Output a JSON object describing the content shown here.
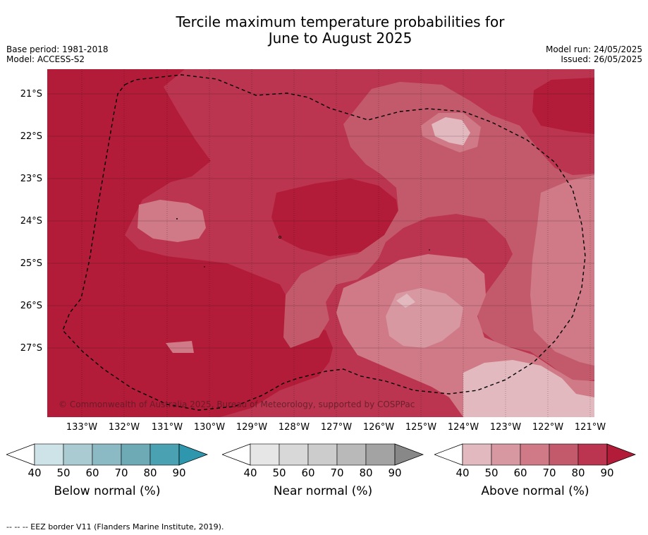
{
  "title_line1": "Tercile maximum temperature probabilities for",
  "title_line2": "June to August 2025",
  "base_period": "Base period: 1981-2018",
  "model": "Model: ACCESS-S2",
  "model_run": "Model run: 24/05/2025",
  "issued": "Issued: 26/05/2025",
  "lat_labels": [
    "21°S",
    "22°S",
    "23°S",
    "24°S",
    "25°S",
    "26°S",
    "27°S"
  ],
  "lon_labels": [
    "133°W",
    "132°W",
    "131°W",
    "130°W",
    "129°W",
    "128°W",
    "127°W",
    "126°W",
    "125°W",
    "124°W",
    "123°W",
    "122°W",
    "121°W"
  ],
  "copyright": "© Commonwealth of Australia 2025, Bureau of Meteorology, supported by COSPPac",
  "colorbars": [
    {
      "label": "Below normal (%)",
      "ticks": [
        "40",
        "50",
        "60",
        "70",
        "80",
        "90"
      ],
      "colors": [
        "#cde3e8",
        "#a9cbd1",
        "#8bb9c4",
        "#6eaab6",
        "#4aa1b2",
        "#2e96ad"
      ]
    },
    {
      "label": "Near normal (%)",
      "ticks": [
        "40",
        "50",
        "60",
        "70",
        "80",
        "90"
      ],
      "colors": [
        "#e6e6e6",
        "#d8d8d8",
        "#cccccc",
        "#b9b9b9",
        "#a3a3a3",
        "#888888"
      ]
    },
    {
      "label": "Above normal (%)",
      "ticks": [
        "40",
        "50",
        "60",
        "70",
        "80",
        "90"
      ],
      "colors": [
        "#e3b9c0",
        "#d898a2",
        "#cf7a86",
        "#c35a6b",
        "#bc3550",
        "#b21c39"
      ]
    }
  ],
  "footer": "-- -- -- EEZ border V11 (Flanders Marine Institute, 2019)."
}
